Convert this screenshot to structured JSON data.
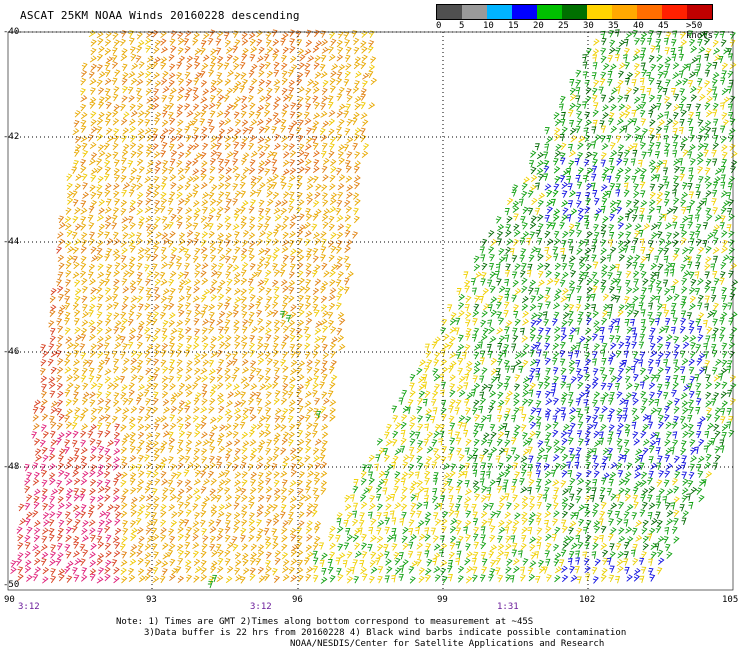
{
  "title": "ASCAT 25KM NOAA Winds 20160228 descending",
  "legend": {
    "colors": [
      "#505050",
      "#9a9a9a",
      "#00b4ff",
      "#0000ff",
      "#00c000",
      "#007000",
      "#ffd400",
      "#ffa800",
      "#ff6e00",
      "#ff2000",
      "#c00000",
      "#9a5030",
      "#ff00d0",
      "#8800c8",
      "#400080"
    ],
    "tick_labels": [
      "0",
      "5",
      "10",
      "15",
      "20",
      "25",
      "30",
      "35",
      "40",
      "45",
      ">50 knots"
    ]
  },
  "latitudes": [
    "-40",
    "-42",
    "-44",
    "-46",
    "-48",
    "-50"
  ],
  "longitudes": [
    "90",
    "93",
    "96",
    "99",
    "102",
    "105"
  ],
  "pass_times": [
    "3:12",
    "3:12",
    "1:31"
  ],
  "notes": {
    "line1": "Note: 1) Times are GMT 2)Times along bottom correspond to measurement at ~45S",
    "line2": "3)Data buffer is 22 hrs from 20160228 4) Black wind barbs indicate possible contamination"
  },
  "credit": "NOAA/NESDIS/Center for Satellite Applications and Research"
}
